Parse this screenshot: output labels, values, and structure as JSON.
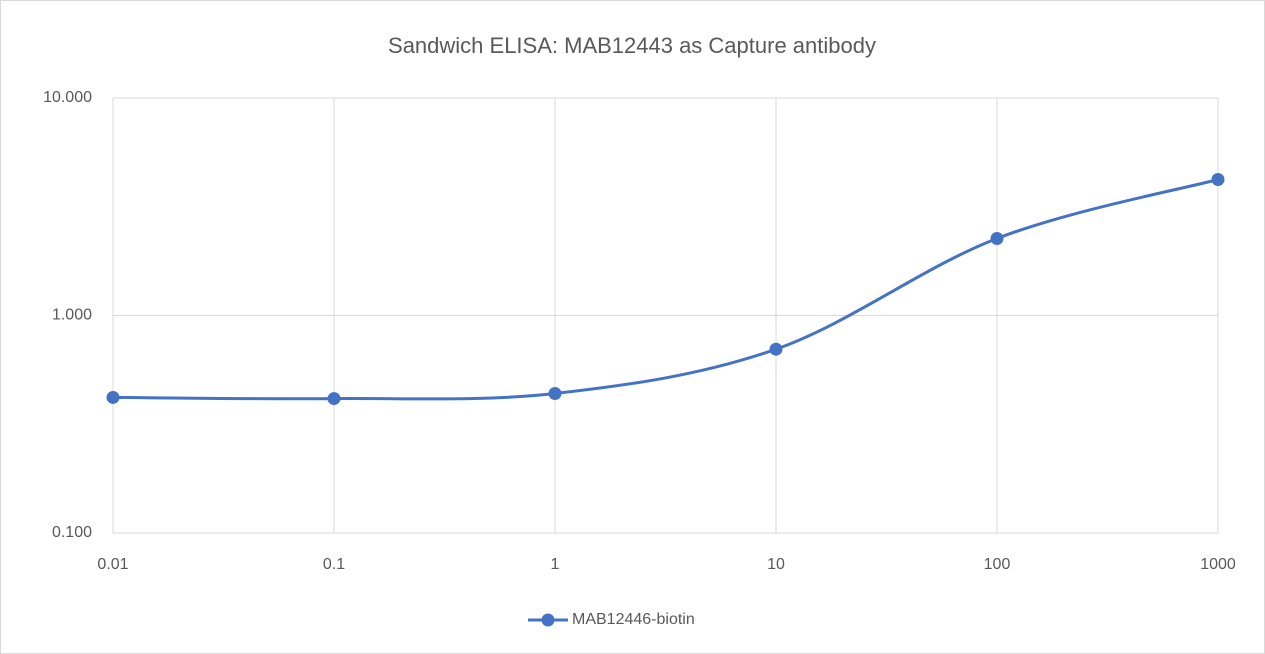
{
  "chart_data": {
    "type": "line",
    "title": "Sandwich ELISA: MAB12443 as Capture antibody",
    "x": [
      0.01,
      0.1,
      1,
      10,
      100,
      1000
    ],
    "series": [
      {
        "name": "MAB12446-biotin",
        "color": "#4472c4",
        "values": [
          0.42,
          0.415,
          0.438,
          0.7,
          2.26,
          4.22
        ]
      }
    ],
    "xlim": [
      0.01,
      1000
    ],
    "xticks": [
      0.01,
      0.1,
      1,
      10,
      100,
      1000
    ],
    "xscale": "log",
    "ylim": [
      0.1,
      10
    ],
    "yticks": [
      {
        "value": 0.1,
        "label": "0.100"
      },
      {
        "value": 1,
        "label": "1.000"
      },
      {
        "value": 10,
        "label": "10.000"
      }
    ],
    "yscale": "log",
    "grid": true,
    "smooth": true,
    "legend": "bottom"
  }
}
